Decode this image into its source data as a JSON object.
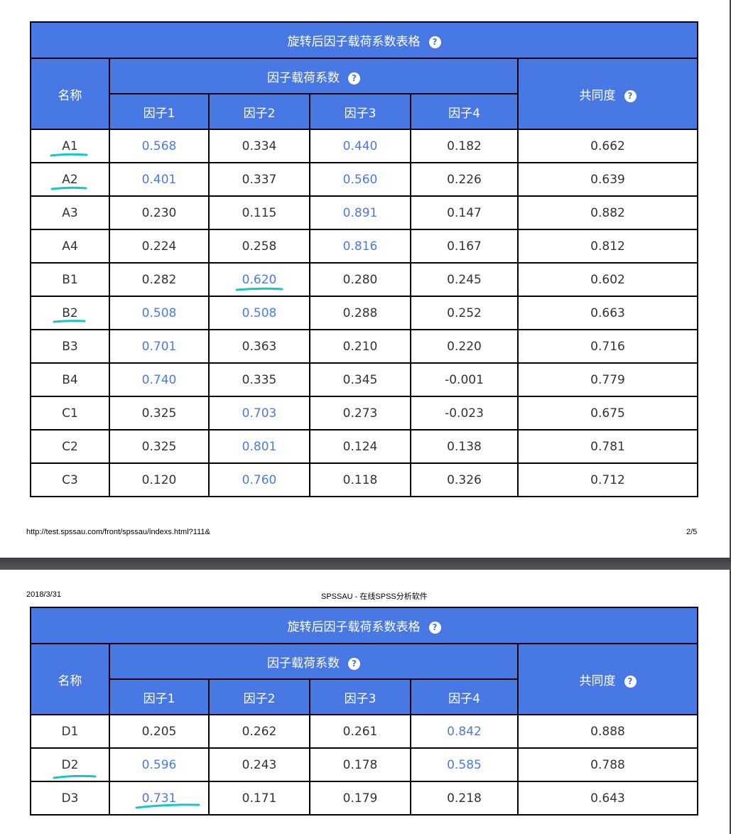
{
  "page1": {
    "table": {
      "title": "旋转后因子载荷系数表格",
      "name_header": "名称",
      "loading_header": "因子载荷系数",
      "communality_header": "共同度",
      "factors": [
        "因子1",
        "因子2",
        "因子3",
        "因子4"
      ],
      "rows": [
        {
          "name": "A1",
          "values": [
            "0.568",
            "0.334",
            "0.440",
            "0.182"
          ],
          "communality": "0.662",
          "highlight": [
            0,
            2
          ]
        },
        {
          "name": "A2",
          "values": [
            "0.401",
            "0.337",
            "0.560",
            "0.226"
          ],
          "communality": "0.639",
          "highlight": [
            0,
            2
          ]
        },
        {
          "name": "A3",
          "values": [
            "0.230",
            "0.115",
            "0.891",
            "0.147"
          ],
          "communality": "0.882",
          "highlight": [
            2
          ]
        },
        {
          "name": "A4",
          "values": [
            "0.224",
            "0.258",
            "0.816",
            "0.167"
          ],
          "communality": "0.812",
          "highlight": [
            2
          ]
        },
        {
          "name": "B1",
          "values": [
            "0.282",
            "0.620",
            "0.280",
            "0.245"
          ],
          "communality": "0.602",
          "highlight": [
            1
          ]
        },
        {
          "name": "B2",
          "values": [
            "0.508",
            "0.508",
            "0.288",
            "0.252"
          ],
          "communality": "0.663",
          "highlight": [
            0,
            1
          ]
        },
        {
          "name": "B3",
          "values": [
            "0.701",
            "0.363",
            "0.210",
            "0.220"
          ],
          "communality": "0.716",
          "highlight": [
            0
          ]
        },
        {
          "name": "B4",
          "values": [
            "0.740",
            "0.335",
            "0.345",
            "-0.001"
          ],
          "communality": "0.779",
          "highlight": [
            0
          ]
        },
        {
          "name": "C1",
          "values": [
            "0.325",
            "0.703",
            "0.273",
            "-0.023"
          ],
          "communality": "0.675",
          "highlight": [
            1
          ]
        },
        {
          "name": "C2",
          "values": [
            "0.325",
            "0.801",
            "0.124",
            "0.138"
          ],
          "communality": "0.781",
          "highlight": [
            1
          ]
        },
        {
          "name": "C3",
          "values": [
            "0.120",
            "0.760",
            "0.118",
            "0.326"
          ],
          "communality": "0.712",
          "highlight": [
            1
          ]
        }
      ]
    },
    "footer_url": "http://test.spssau.com/front/spssau/indexs.html?111&",
    "page_number": "2/5"
  },
  "page2": {
    "header_date": "2018/3/31",
    "header_title": "SPSSAU - 在线SPSS分析软件",
    "table": {
      "title": "旋转后因子载荷系数表格",
      "name_header": "名称",
      "loading_header": "因子载荷系数",
      "communality_header": "共同度",
      "factors": [
        "因子1",
        "因子2",
        "因子3",
        "因子4"
      ],
      "rows": [
        {
          "name": "D1",
          "values": [
            "0.205",
            "0.262",
            "0.261",
            "0.842"
          ],
          "communality": "0.888",
          "highlight": [
            3
          ]
        },
        {
          "name": "D2",
          "values": [
            "0.596",
            "0.243",
            "0.178",
            "0.585"
          ],
          "communality": "0.788",
          "highlight": [
            0,
            3
          ]
        },
        {
          "name": "D3",
          "values": [
            "0.731",
            "0.171",
            "0.179",
            "0.218"
          ],
          "communality": "0.643",
          "highlight": [
            0
          ]
        }
      ]
    }
  },
  "colors": {
    "header_bg": "#4878e4",
    "highlight_text": "#4a7ae6",
    "annotation": "#19c6c6"
  }
}
